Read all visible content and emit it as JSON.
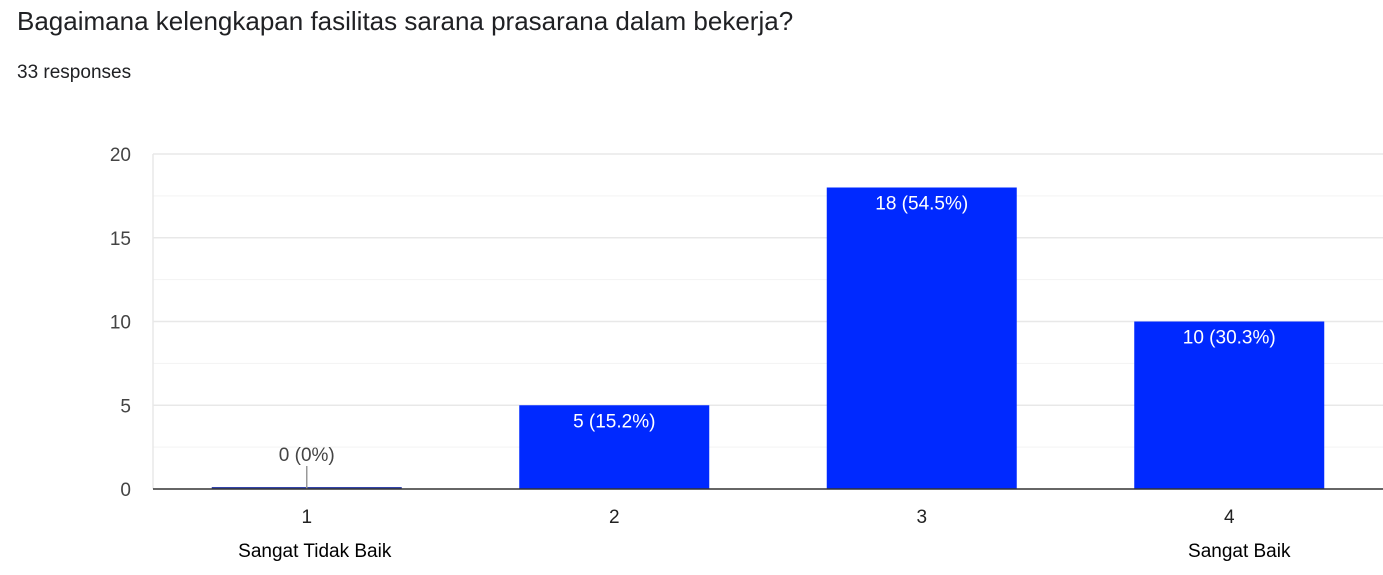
{
  "header": {
    "title": "Bagaimana kelengkapan fasilitas sarana prasarana dalam bekerja?",
    "responses": "33 responses"
  },
  "chart_data": {
    "type": "bar",
    "categories": [
      "1",
      "2",
      "3",
      "4"
    ],
    "values": [
      0,
      5,
      18,
      10
    ],
    "data_labels": [
      "0 (0%)",
      "5 (15.2%)",
      "18 (54.5%)",
      "10 (30.3%)"
    ],
    "category_sublabels": [
      "Sangat Tidak Baik",
      "",
      "",
      "Sangat Baik"
    ],
    "yticks": [
      0,
      5,
      10,
      15,
      20
    ],
    "ylim": [
      0,
      20
    ],
    "grid": true,
    "bar_color": "#0029ff",
    "title": "",
    "xlabel": "",
    "ylabel": ""
  }
}
